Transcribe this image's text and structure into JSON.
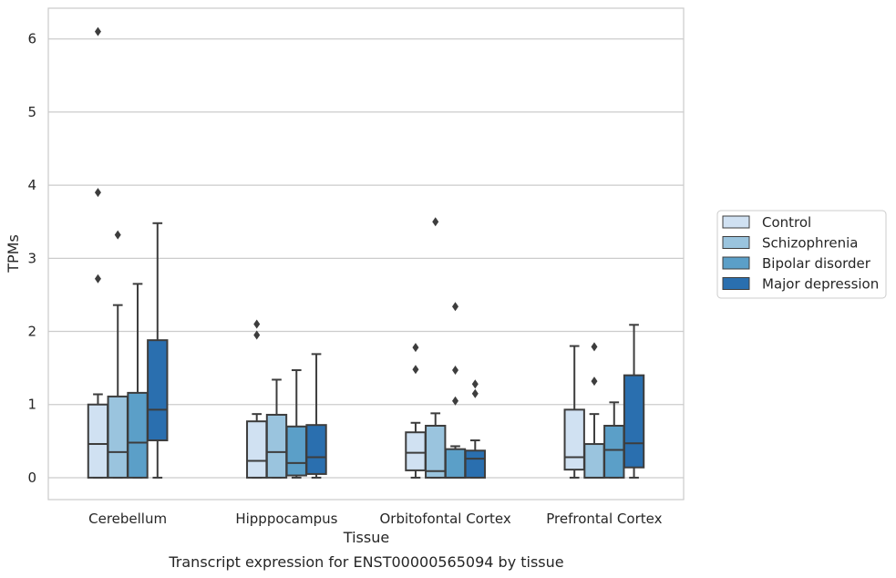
{
  "caption": "Transcript expression for ENST00000565094 by tissue",
  "chart_data": {
    "type": "box",
    "xlabel": "Tissue",
    "ylabel": "TPMs",
    "ylim": [
      -0.3,
      6.42
    ],
    "yticks": [
      0,
      1,
      2,
      3,
      4,
      5,
      6
    ],
    "grid": true,
    "legend_position": "right",
    "categories": [
      "Cerebellum",
      "Hipppocampus",
      "Orbitofontal Cortex",
      "Prefrontal Cortex"
    ],
    "series": [
      {
        "name": "Control",
        "color": "#d0e1f2",
        "boxes": [
          {
            "whislo": 0.0,
            "q1": 0.0,
            "med": 0.46,
            "q3": 1.0,
            "whishi": 1.14,
            "fliers": [
              6.1,
              3.9,
              2.72
            ]
          },
          {
            "whislo": 0.0,
            "q1": 0.0,
            "med": 0.23,
            "q3": 0.77,
            "whishi": 0.87,
            "fliers": [
              2.1,
              1.95
            ]
          },
          {
            "whislo": 0.0,
            "q1": 0.1,
            "med": 0.34,
            "q3": 0.62,
            "whishi": 0.75,
            "fliers": [
              1.78,
              1.48
            ]
          },
          {
            "whislo": 0.0,
            "q1": 0.11,
            "med": 0.28,
            "q3": 0.93,
            "whishi": 1.8,
            "fliers": []
          }
        ]
      },
      {
        "name": "Schizophrenia",
        "color": "#9ac4de",
        "boxes": [
          {
            "whislo": 0.0,
            "q1": 0.0,
            "med": 0.35,
            "q3": 1.11,
            "whishi": 2.36,
            "fliers": [
              3.32
            ]
          },
          {
            "whislo": 0.0,
            "q1": 0.0,
            "med": 0.35,
            "q3": 0.86,
            "whishi": 1.34,
            "fliers": []
          },
          {
            "whislo": 0.0,
            "q1": 0.0,
            "med": 0.09,
            "q3": 0.71,
            "whishi": 0.88,
            "fliers": [
              3.5
            ]
          },
          {
            "whislo": 0.0,
            "q1": 0.0,
            "med": 0.0,
            "q3": 0.46,
            "whishi": 0.87,
            "fliers": [
              1.79,
              1.32
            ]
          }
        ]
      },
      {
        "name": "Bipolar disorder",
        "color": "#5b9fc8",
        "boxes": [
          {
            "whislo": 0.0,
            "q1": 0.0,
            "med": 0.48,
            "q3": 1.16,
            "whishi": 2.65,
            "fliers": []
          },
          {
            "whislo": 0.0,
            "q1": 0.03,
            "med": 0.2,
            "q3": 0.7,
            "whishi": 1.47,
            "fliers": []
          },
          {
            "whislo": 0.0,
            "q1": 0.0,
            "med": 0.0,
            "q3": 0.39,
            "whishi": 0.43,
            "fliers": [
              2.34,
              1.47,
              1.05
            ]
          },
          {
            "whislo": 0.0,
            "q1": 0.0,
            "med": 0.38,
            "q3": 0.71,
            "whishi": 1.03,
            "fliers": []
          }
        ]
      },
      {
        "name": "Major depression",
        "color": "#2a6faf",
        "boxes": [
          {
            "whislo": 0.0,
            "q1": 0.51,
            "med": 0.93,
            "q3": 1.88,
            "whishi": 3.48,
            "fliers": []
          },
          {
            "whislo": 0.0,
            "q1": 0.05,
            "med": 0.28,
            "q3": 0.72,
            "whishi": 1.69,
            "fliers": []
          },
          {
            "whislo": 0.0,
            "q1": 0.0,
            "med": 0.26,
            "q3": 0.37,
            "whishi": 0.51,
            "fliers": [
              1.28,
              1.15
            ]
          },
          {
            "whislo": 0.0,
            "q1": 0.14,
            "med": 0.47,
            "q3": 1.4,
            "whishi": 2.09,
            "fliers": []
          }
        ]
      }
    ]
  }
}
